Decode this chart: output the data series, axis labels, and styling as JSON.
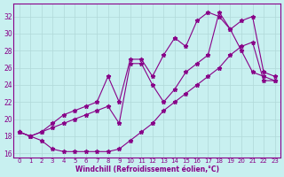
{
  "xlabel": "Windchill (Refroidissement éolien,°C)",
  "bg_color": "#c8f0f0",
  "line_color": "#880088",
  "xlim": [
    -0.5,
    23.5
  ],
  "ylim": [
    15.5,
    33.5
  ],
  "yticks": [
    16,
    18,
    20,
    22,
    24,
    26,
    28,
    30,
    32
  ],
  "xticks": [
    0,
    1,
    2,
    3,
    4,
    5,
    6,
    7,
    8,
    9,
    10,
    11,
    12,
    13,
    14,
    15,
    16,
    17,
    18,
    19,
    20,
    21,
    22,
    23
  ],
  "line1_x": [
    0,
    1,
    2,
    3,
    4,
    5,
    6,
    7,
    8,
    9,
    10,
    11,
    12,
    13,
    14,
    15,
    16,
    17,
    18,
    19,
    20,
    21,
    22,
    23
  ],
  "line1_y": [
    18.5,
    18.0,
    17.5,
    16.5,
    16.2,
    16.2,
    16.2,
    16.2,
    16.2,
    16.5,
    17.5,
    18.5,
    19.5,
    21.0,
    22.0,
    23.0,
    24.0,
    25.0,
    26.0,
    27.5,
    28.5,
    29.0,
    24.5,
    24.5
  ],
  "line2_x": [
    0,
    1,
    2,
    3,
    4,
    5,
    6,
    7,
    8,
    9,
    10,
    11,
    12,
    13,
    14,
    15,
    16,
    17,
    18,
    19,
    20,
    21,
    22,
    23
  ],
  "line2_y": [
    18.5,
    18.0,
    18.5,
    19.5,
    20.5,
    21.0,
    21.5,
    22.0,
    25.0,
    22.0,
    27.0,
    27.0,
    25.0,
    27.5,
    29.5,
    28.5,
    31.5,
    32.5,
    32.0,
    30.5,
    28.0,
    25.5,
    25.0,
    24.5
  ],
  "line3_x": [
    0,
    1,
    2,
    3,
    4,
    5,
    6,
    7,
    8,
    9,
    10,
    11,
    12,
    13,
    14,
    15,
    16,
    17,
    18,
    19,
    20,
    21,
    22,
    23
  ],
  "line3_y": [
    18.5,
    18.0,
    18.5,
    19.0,
    19.5,
    20.0,
    20.5,
    21.0,
    21.5,
    19.5,
    26.5,
    26.5,
    24.0,
    22.0,
    23.5,
    25.5,
    26.5,
    27.5,
    32.5,
    30.5,
    31.5,
    32.0,
    25.5,
    25.0
  ]
}
